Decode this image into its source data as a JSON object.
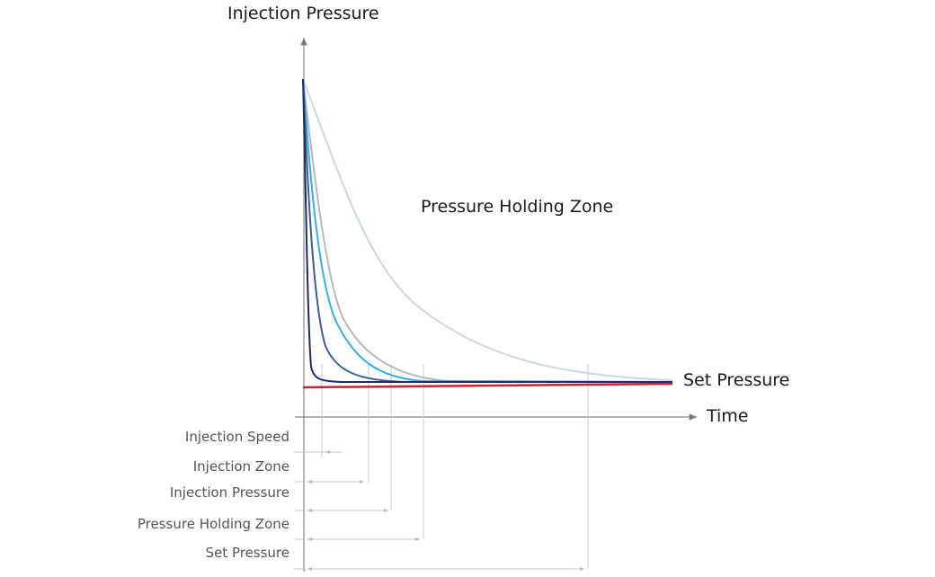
{
  "diagram": {
    "y_axis_label": "Injection Pressure",
    "x_axis_label": "Time",
    "zone_label": "Pressure Holding Zone",
    "set_pressure_label": "Set Pressure",
    "phase_labels": [
      "Injection Speed",
      "Injection Zone",
      "Injection Pressure",
      "Pressure Holding Zone",
      "Set Pressure"
    ],
    "colors": {
      "set_pressure_line": "#d0202a",
      "curve_1": "#1f2a66",
      "curve_2": "#3a5f9a",
      "curve_3": "#3aaee0",
      "curve_4": "#b5b9bf",
      "curve_5": "#cbd8e2"
    }
  }
}
